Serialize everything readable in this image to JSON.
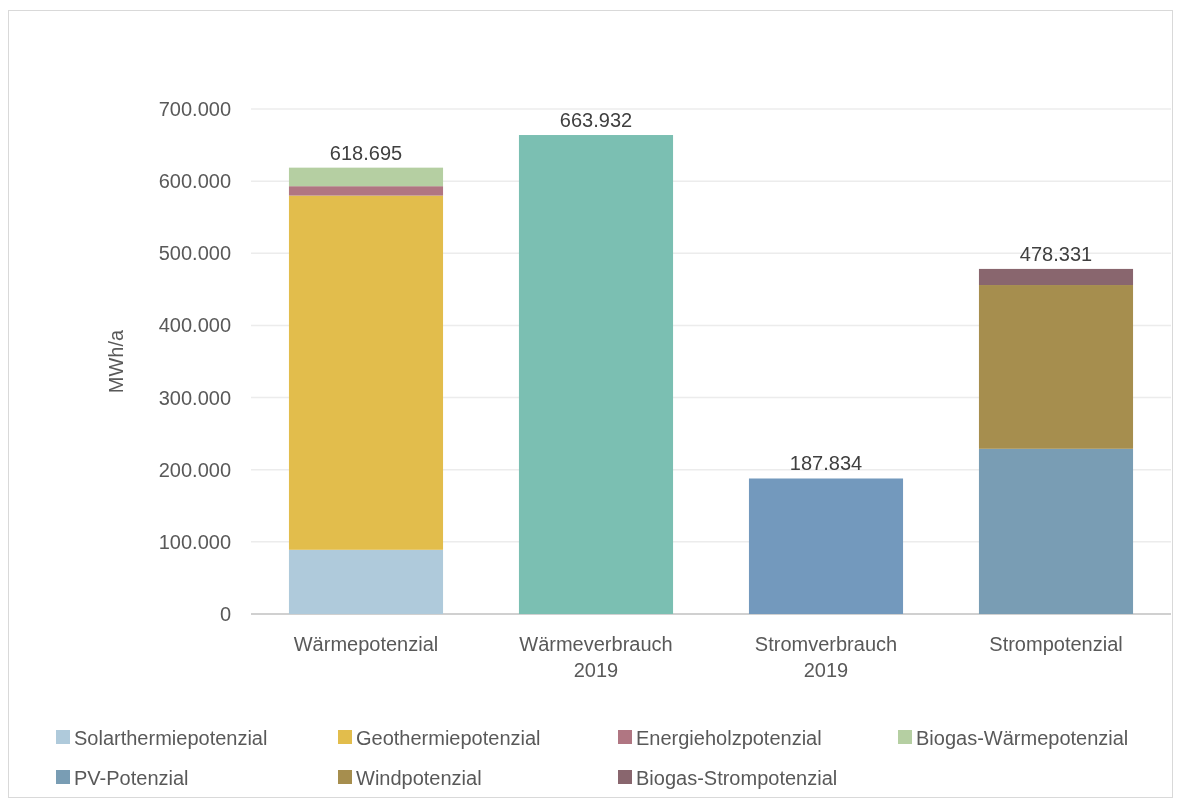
{
  "chart_data": {
    "type": "bar",
    "stacked": true,
    "ylabel": "MWh/a",
    "categories": [
      "Wärmepotenzial",
      "Wärmeverbrauch\n2019",
      "Stromverbrauch\n2019",
      "Strompotenzial"
    ],
    "series": [
      {
        "name": "Solarthermiepotenzial",
        "color": "#afcadb",
        "values": [
          89000,
          null,
          null,
          null
        ]
      },
      {
        "name": "Geothermiepotenzial",
        "color": "#e2bd4c",
        "values": [
          491000,
          null,
          null,
          null
        ]
      },
      {
        "name": "Energieholzpotenzial",
        "color": "#b07682",
        "values": [
          13000,
          null,
          null,
          null
        ]
      },
      {
        "name": "Biogas-Wärmepotenzial",
        "color": "#b5cfa2",
        "values": [
          25695,
          null,
          null,
          null
        ]
      },
      {
        "color": "#7bbfb2",
        "values": [
          null,
          663932,
          null,
          null
        ]
      },
      {
        "color": "#7399bd",
        "values": [
          null,
          null,
          187834,
          null
        ]
      },
      {
        "name": "PV-Potenzial",
        "color": "#799db4",
        "values": [
          null,
          null,
          null,
          229000
        ]
      },
      {
        "name": "Windpotenzial",
        "color": "#a68e4e",
        "values": [
          null,
          null,
          null,
          227000
        ]
      },
      {
        "name": "Biogas-Strompotenzial",
        "color": "#89666e",
        "values": [
          null,
          null,
          null,
          22331
        ]
      }
    ],
    "totals": [
      "618.695",
      "663.932",
      "187.834",
      "478.331"
    ],
    "ylim": [
      0,
      700000
    ],
    "yticks": [
      {
        "value": 0,
        "label": "0"
      },
      {
        "value": 100000,
        "label": "100.000"
      },
      {
        "value": 200000,
        "label": "200.000"
      },
      {
        "value": 300000,
        "label": "300.000"
      },
      {
        "value": 400000,
        "label": "400.000"
      },
      {
        "value": 500000,
        "label": "500.000"
      },
      {
        "value": 600000,
        "label": "600.000"
      },
      {
        "value": 700000,
        "label": "700.000"
      }
    ],
    "grid": "y",
    "legend": "bottom"
  }
}
